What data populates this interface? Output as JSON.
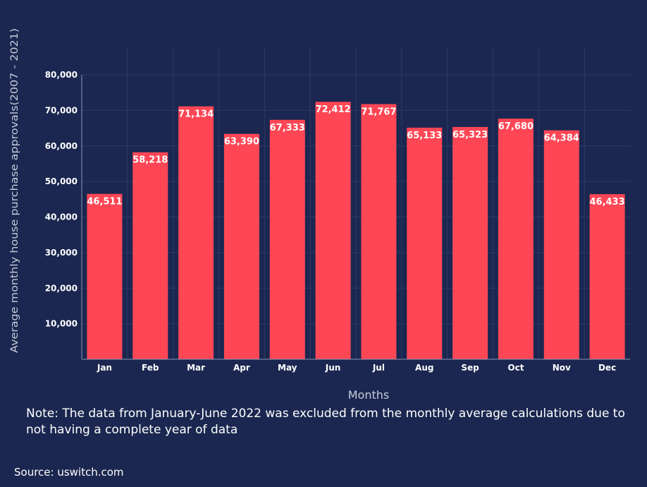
{
  "chart_data": {
    "type": "bar",
    "categories": [
      "Jan",
      "Feb",
      "Mar",
      "Apr",
      "May",
      "Jun",
      "Jul",
      "Aug",
      "Sep",
      "Oct",
      "Nov",
      "Dec"
    ],
    "values": [
      46511,
      58218,
      71134,
      63390,
      67333,
      72412,
      71767,
      65133,
      65323,
      67680,
      64384,
      46433
    ],
    "value_labels": [
      "46,511",
      "58,218",
      "71,134",
      "63,390",
      "67,333",
      "72,412",
      "71,767",
      "65,133",
      "65,323",
      "67,680",
      "64,384",
      "46,433"
    ],
    "xlabel": "Months",
    "ylabel": "Average monthly house purchase approvals(2007 - 2021)",
    "ylim": [
      0,
      80000
    ],
    "yticks": [
      10000,
      20000,
      30000,
      40000,
      50000,
      60000,
      70000,
      80000
    ],
    "ytick_labels": [
      "10,000",
      "20,000",
      "30,000",
      "40,000",
      "50,000",
      "60,000",
      "70,000",
      "80,000"
    ],
    "grid": true,
    "bar_color": "#ff4655",
    "background_color": "#1b2750"
  },
  "note": "Note: The data from January-June 2022 was excluded from the monthly average calculations due to not having a complete year of data",
  "source": "Source: uswitch.com"
}
